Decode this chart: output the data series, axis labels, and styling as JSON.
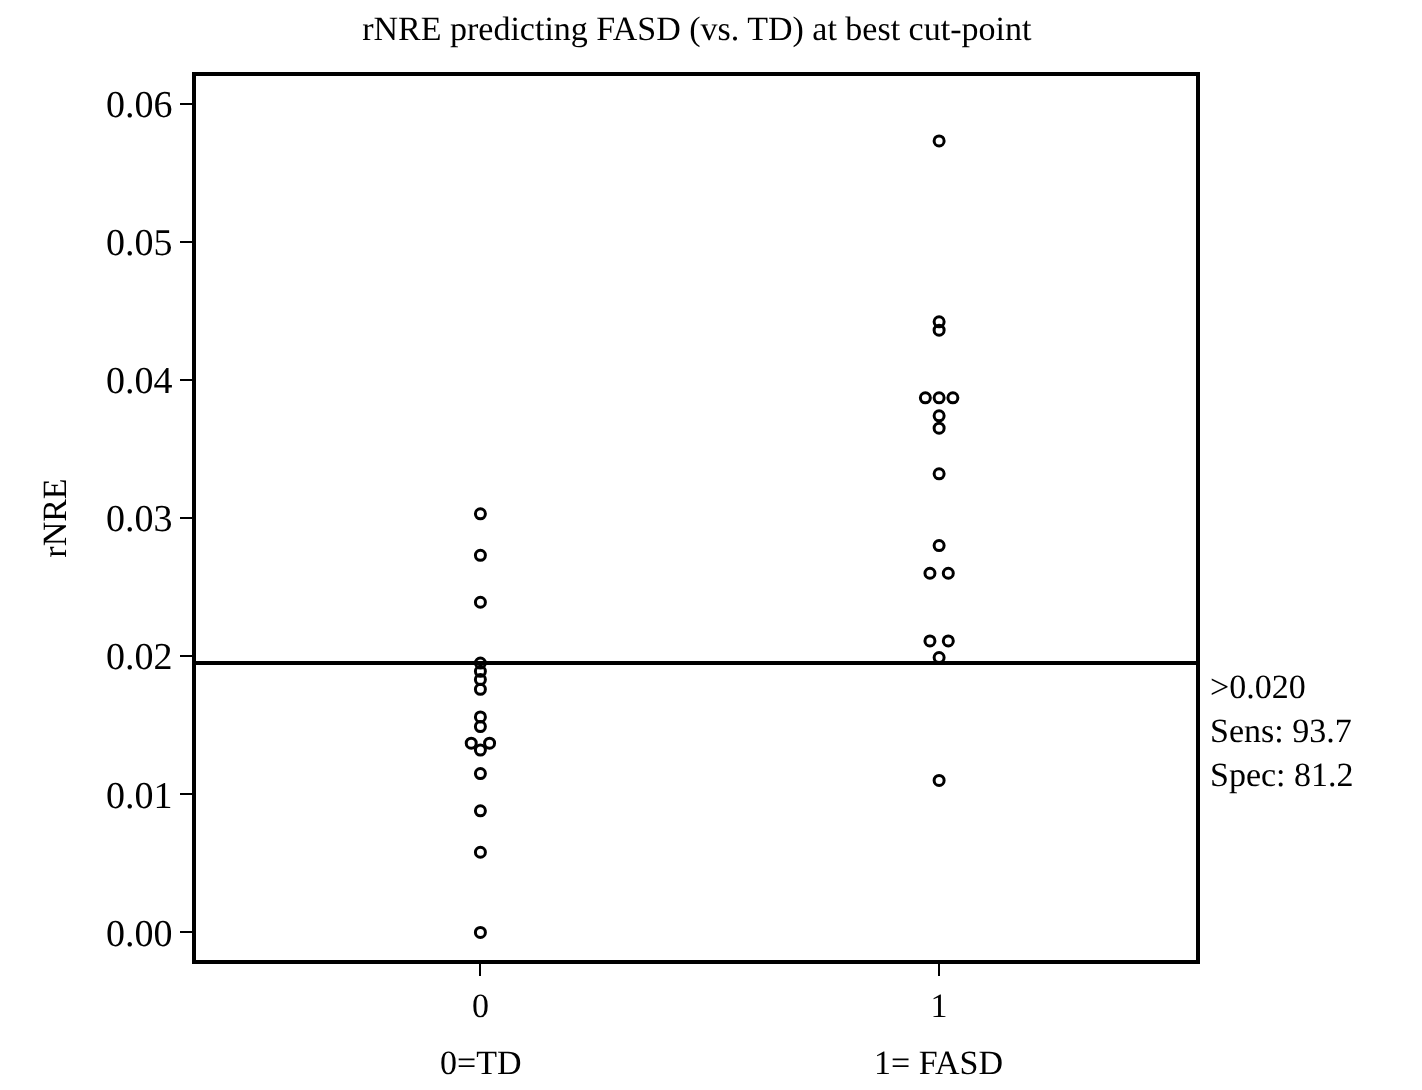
{
  "chart_data": {
    "type": "scatter",
    "title": "rNRE predicting FASD (vs. TD) at best cut-point",
    "ylabel": "rNRE",
    "series": [
      {
        "color": "#000000",
        "x": [
          0,
          0,
          0,
          0,
          0,
          0,
          0,
          0,
          0,
          -0.02,
          0,
          0.02,
          0,
          0,
          0,
          0
        ],
        "values": [
          0.0303,
          0.0273,
          0.0239,
          0.0195,
          0.0189,
          0.0183,
          0.0176,
          0.0156,
          0.0149,
          0.0137,
          0.0132,
          0.0137,
          0.0115,
          0.0088,
          0.0058,
          0.0
        ]
      },
      {
        "color": "#000000",
        "x": [
          1,
          1,
          1,
          0.97,
          1,
          1.03,
          1,
          1,
          1,
          1,
          0.98,
          1.02,
          0.98,
          1.02,
          1,
          1
        ],
        "values": [
          0.0573,
          0.0442,
          0.0436,
          0.0387,
          0.0387,
          0.0387,
          0.0374,
          0.0365,
          0.0332,
          0.028,
          0.026,
          0.026,
          0.0211,
          0.0211,
          0.0199,
          0.011
        ]
      }
    ],
    "xlim": [
      -0.62,
      1.56
    ],
    "xticks": [
      0,
      1
    ],
    "ylim": [
      -0.002,
      0.062
    ],
    "yticks": [
      {
        "value": 0,
        "label": "0.00"
      },
      {
        "value": 0.01,
        "label": "0.01"
      },
      {
        "value": 0.02,
        "label": "0.02"
      },
      {
        "value": 0.03,
        "label": "0.03"
      },
      {
        "value": 0.04,
        "label": "0.04"
      },
      {
        "value": 0.05,
        "label": "0.05"
      },
      {
        "value": 0.06,
        "label": "0.06"
      }
    ],
    "ref_lines": [
      {
        "axis": "y",
        "value": 0.0195,
        "label": ">0.020\nSens: 93.7\nSpec: 81.2",
        "color": "#000000"
      }
    ],
    "annotations": [
      "0=TD",
      "1= FASD"
    ],
    "marker": "circle",
    "legend": false
  }
}
